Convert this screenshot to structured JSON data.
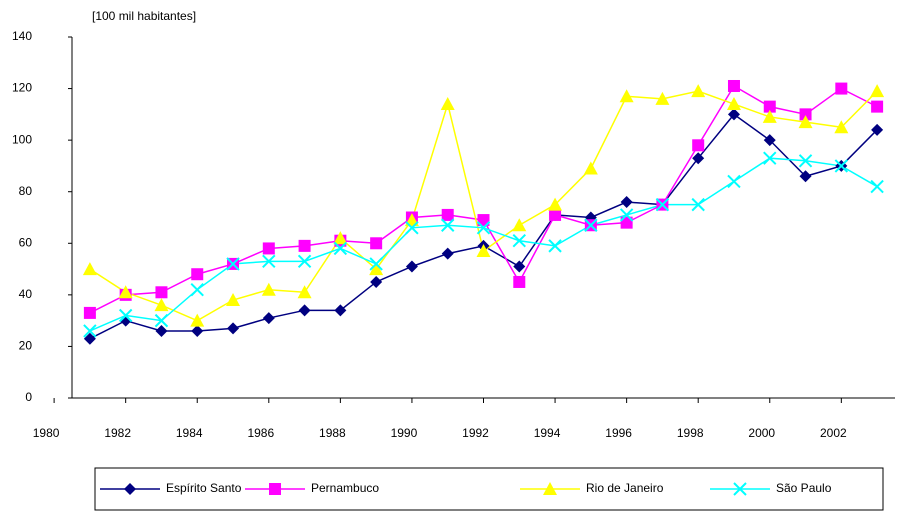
{
  "chart_data": {
    "type": "line",
    "y_axis_label": "[100 mil habitantes]",
    "x": [
      1981,
      1982,
      1983,
      1984,
      1985,
      1986,
      1987,
      1988,
      1989,
      1990,
      1991,
      1992,
      1993,
      1994,
      1995,
      1996,
      1997,
      1998,
      1999,
      2000,
      2001,
      2002,
      2003
    ],
    "series": [
      {
        "name": "Espírito Santo",
        "color": "#000080",
        "marker": "diamond",
        "values": [
          23,
          30,
          26,
          26,
          27,
          31,
          34,
          34,
          45,
          51,
          56,
          59,
          51,
          71,
          70,
          76,
          75,
          93,
          110,
          100,
          86,
          90,
          104
        ]
      },
      {
        "name": "Pernambuco",
        "color": "#ff00ff",
        "marker": "square",
        "values": [
          33,
          40,
          41,
          48,
          52,
          58,
          59,
          61,
          60,
          70,
          71,
          69,
          45,
          71,
          67,
          68,
          75,
          98,
          121,
          113,
          110,
          120,
          113
        ]
      },
      {
        "name": "Rio de Janeiro",
        "color": "#ffff00",
        "marker": "triangle",
        "values": [
          50,
          41,
          36,
          30,
          38,
          42,
          41,
          62,
          50,
          69,
          114,
          57,
          67,
          75,
          89,
          117,
          116,
          119,
          114,
          109,
          107,
          105,
          119
        ]
      },
      {
        "name": "São Paulo",
        "color": "#00ffff",
        "marker": "x",
        "values": [
          26,
          32,
          30,
          42,
          52,
          53,
          53,
          58,
          52,
          66,
          67,
          66,
          61,
          59,
          67,
          71,
          75,
          75,
          84,
          93,
          92,
          90,
          82
        ]
      }
    ],
    "xlim": [
      1980.5,
      2003.5
    ],
    "xticks": [
      1980,
      1982,
      1984,
      1986,
      1988,
      1990,
      1992,
      1994,
      1996,
      1998,
      2000,
      2002
    ],
    "ylim": [
      0,
      140
    ],
    "yticks": [
      0,
      20,
      40,
      60,
      80,
      100,
      120,
      140
    ],
    "grid": false,
    "legend": "bottom"
  }
}
